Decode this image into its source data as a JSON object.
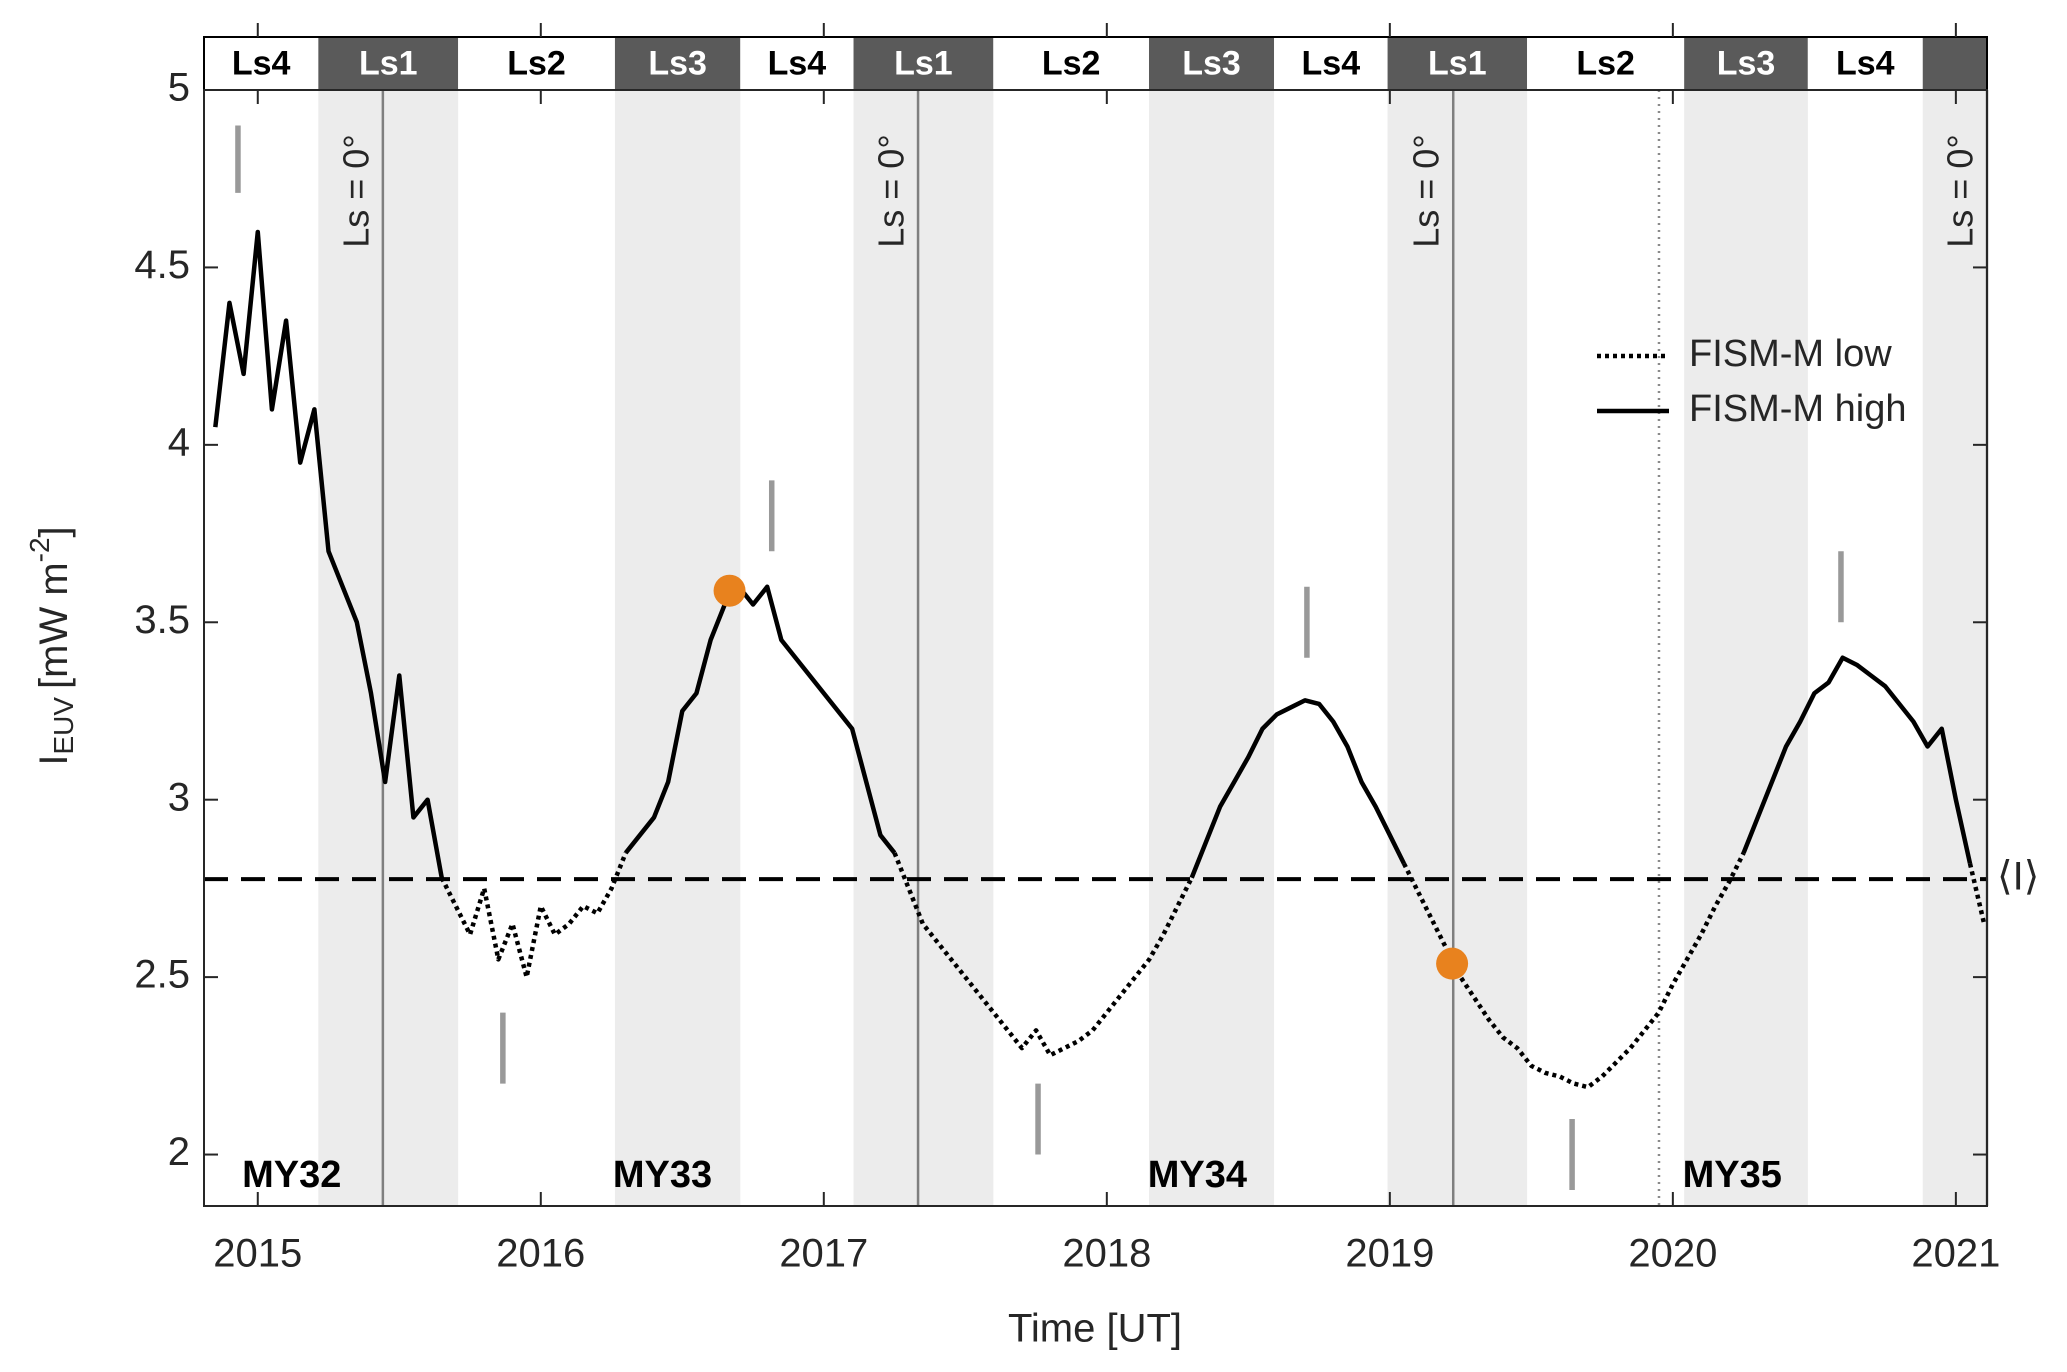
{
  "chart_data": {
    "type": "line",
    "xlabel": "Time [UT]",
    "ylabel": {
      "symbol": "I",
      "subscript": "EUV",
      "unit": "[mW m",
      "superscript": "-2",
      "close": "]"
    },
    "xlim": [
      2014.81,
      2021.11
    ],
    "ylim": [
      1.855,
      5
    ],
    "xticks": [
      2015,
      2016,
      2017,
      2018,
      2019,
      2020,
      2021
    ],
    "yticks": [
      2,
      2.5,
      3,
      3.5,
      4,
      4.5,
      5
    ],
    "legend": "upper right",
    "x": [
      2014.85,
      2014.9,
      2014.95,
      2015.0,
      2015.05,
      2015.1,
      2015.15,
      2015.2,
      2015.25,
      2015.3,
      2015.35,
      2015.4,
      2015.45,
      2015.5,
      2015.55,
      2015.6,
      2015.65,
      2015.7,
      2015.75,
      2015.8,
      2015.85,
      2015.9,
      2015.95,
      2016.0,
      2016.05,
      2016.1,
      2016.15,
      2016.2,
      2016.25,
      2016.3,
      2016.35,
      2016.4,
      2016.45,
      2016.5,
      2016.55,
      2016.6,
      2016.65,
      2016.7,
      2016.75,
      2016.8,
      2016.85,
      2016.9,
      2016.95,
      2017.0,
      2017.05,
      2017.1,
      2017.15,
      2017.2,
      2017.25,
      2017.3,
      2017.35,
      2017.4,
      2017.45,
      2017.5,
      2017.55,
      2017.6,
      2017.65,
      2017.7,
      2017.75,
      2017.8,
      2017.85,
      2017.9,
      2017.95,
      2018.0,
      2018.05,
      2018.1,
      2018.15,
      2018.2,
      2018.25,
      2018.3,
      2018.35,
      2018.4,
      2018.45,
      2018.5,
      2018.55,
      2018.6,
      2018.65,
      2018.7,
      2018.75,
      2018.8,
      2018.85,
      2018.9,
      2018.95,
      2019.0,
      2019.05,
      2019.1,
      2019.15,
      2019.2,
      2019.25,
      2019.3,
      2019.35,
      2019.4,
      2019.45,
      2019.5,
      2019.55,
      2019.6,
      2019.65,
      2019.7,
      2019.75,
      2019.8,
      2019.85,
      2019.9,
      2019.95,
      2020.0,
      2020.05,
      2020.1,
      2020.15,
      2020.2,
      2020.25,
      2020.3,
      2020.35,
      2020.4,
      2020.45,
      2020.5,
      2020.55,
      2020.6,
      2020.65,
      2020.7,
      2020.75,
      2020.8,
      2020.85,
      2020.9,
      2020.95,
      2021.0,
      2021.05,
      2021.1
    ],
    "series": [
      {
        "name": "FISM-M low",
        "color": "#000000",
        "style": "dotted",
        "values": [
          null,
          null,
          null,
          null,
          null,
          null,
          null,
          null,
          null,
          null,
          null,
          null,
          null,
          null,
          null,
          null,
          2.78,
          2.7,
          2.62,
          2.75,
          2.55,
          2.65,
          2.5,
          2.7,
          2.62,
          2.65,
          2.7,
          2.68,
          2.75,
          2.85,
          null,
          null,
          null,
          null,
          null,
          null,
          null,
          null,
          null,
          null,
          null,
          null,
          null,
          null,
          null,
          null,
          null,
          null,
          2.85,
          2.75,
          2.65,
          2.6,
          2.55,
          2.5,
          2.45,
          2.4,
          2.35,
          2.3,
          2.35,
          2.28,
          2.3,
          2.32,
          2.35,
          2.4,
          2.45,
          2.5,
          2.55,
          2.62,
          2.7,
          2.78,
          null,
          null,
          null,
          null,
          null,
          null,
          null,
          null,
          null,
          null,
          null,
          null,
          null,
          null,
          2.82,
          2.74,
          2.66,
          2.58,
          2.5,
          2.44,
          2.38,
          2.33,
          2.3,
          2.25,
          2.23,
          2.22,
          2.2,
          2.19,
          2.22,
          2.26,
          2.3,
          2.35,
          2.4,
          2.48,
          2.55,
          2.62,
          2.7,
          2.77,
          2.85,
          null,
          null,
          null,
          null,
          null,
          null,
          null,
          null,
          null,
          null,
          null,
          null,
          null,
          null,
          null,
          2.82,
          2.65
        ]
      },
      {
        "name": "FISM-M high",
        "color": "#000000",
        "style": "solid",
        "values": [
          4.05,
          4.4,
          4.2,
          4.6,
          4.1,
          4.35,
          3.95,
          4.1,
          3.7,
          3.6,
          3.5,
          3.3,
          3.05,
          3.35,
          2.95,
          3.0,
          2.78,
          null,
          null,
          null,
          null,
          null,
          null,
          null,
          null,
          null,
          null,
          null,
          null,
          2.85,
          2.9,
          2.95,
          3.05,
          3.25,
          3.3,
          3.45,
          3.55,
          3.6,
          3.55,
          3.6,
          3.45,
          3.4,
          3.35,
          3.3,
          3.25,
          3.2,
          3.05,
          2.9,
          2.85,
          null,
          null,
          null,
          null,
          null,
          null,
          null,
          null,
          null,
          null,
          null,
          null,
          null,
          null,
          null,
          null,
          null,
          null,
          null,
          null,
          2.78,
          2.88,
          2.98,
          3.05,
          3.12,
          3.2,
          3.24,
          3.26,
          3.28,
          3.27,
          3.22,
          3.15,
          3.05,
          2.98,
          2.9,
          2.82,
          null,
          null,
          null,
          null,
          null,
          null,
          null,
          null,
          null,
          null,
          null,
          null,
          null,
          null,
          null,
          null,
          null,
          null,
          null,
          null,
          null,
          null,
          null,
          2.85,
          2.95,
          3.05,
          3.15,
          3.22,
          3.3,
          3.33,
          3.4,
          3.38,
          3.35,
          3.32,
          3.27,
          3.22,
          3.15,
          3.2,
          3.0,
          2.82,
          null
        ]
      }
    ],
    "mean": {
      "value": 2.776,
      "label": "⟨I⟩"
    },
    "seasons": [
      {
        "label": "Ls4",
        "start": 2014.81,
        "end": 2015.214,
        "dark": false
      },
      {
        "label": "Ls1",
        "start": 2015.214,
        "end": 2015.708,
        "dark": true
      },
      {
        "label": "Ls2",
        "start": 2015.708,
        "end": 2016.262,
        "dark": false
      },
      {
        "label": "Ls3",
        "start": 2016.262,
        "end": 2016.705,
        "dark": true
      },
      {
        "label": "Ls4",
        "start": 2016.705,
        "end": 2017.105,
        "dark": false
      },
      {
        "label": "Ls1",
        "start": 2017.105,
        "end": 2017.599,
        "dark": true
      },
      {
        "label": "Ls2",
        "start": 2017.599,
        "end": 2018.149,
        "dark": false
      },
      {
        "label": "Ls3",
        "start": 2018.149,
        "end": 2018.591,
        "dark": true
      },
      {
        "label": "Ls4",
        "start": 2018.591,
        "end": 2018.992,
        "dark": false
      },
      {
        "label": "Ls1",
        "start": 2018.992,
        "end": 2019.485,
        "dark": true
      },
      {
        "label": "Ls2",
        "start": 2019.485,
        "end": 2020.04,
        "dark": false
      },
      {
        "label": "Ls3",
        "start": 2020.04,
        "end": 2020.477,
        "dark": true
      },
      {
        "label": "Ls4",
        "start": 2020.477,
        "end": 2020.883,
        "dark": false
      },
      {
        "label": null,
        "start": 2020.883,
        "end": 2021.11,
        "dark": true
      }
    ],
    "ls0": {
      "label": "Ls = 0°",
      "x": [
        2015.442,
        2017.333,
        2019.224,
        2021.11
      ]
    },
    "dotted_line_x": 2019.951,
    "mars_years": [
      {
        "label": "MY32",
        "x": 2015.12
      },
      {
        "label": "MY33",
        "x": 2016.43
      },
      {
        "label": "MY34",
        "x": 2018.32
      },
      {
        "label": "MY35",
        "x": 2020.21
      }
    ],
    "markers": [
      {
        "x": 2014.93,
        "y0": 4.9,
        "y1": 4.71
      },
      {
        "x": 2015.866,
        "y0": 2.4,
        "y1": 2.2
      },
      {
        "x": 2016.816,
        "y0": 3.9,
        "y1": 3.7
      },
      {
        "x": 2017.757,
        "y0": 2.2,
        "y1": 2.0
      },
      {
        "x": 2018.707,
        "y0": 3.6,
        "y1": 3.4
      },
      {
        "x": 2019.644,
        "y0": 2.1,
        "y1": 1.9
      },
      {
        "x": 2020.594,
        "y0": 3.7,
        "y1": 3.5
      }
    ],
    "highlights": {
      "color": "#e8821e",
      "points": [
        {
          "x": 2016.667,
          "y": 3.589
        },
        {
          "x": 2019.22,
          "y": 2.538
        }
      ]
    }
  }
}
